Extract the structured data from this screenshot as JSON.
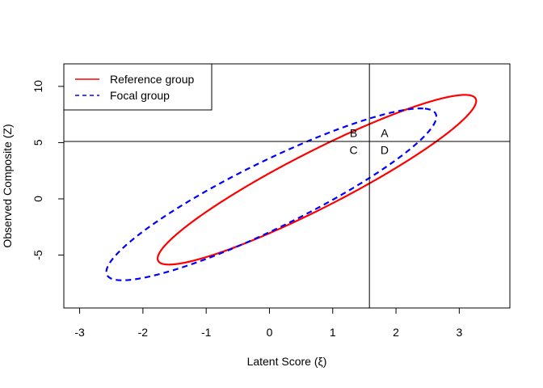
{
  "chart_data": {
    "type": "line",
    "title": "",
    "xlabel": "Latent Score (ξ)",
    "ylabel": "Observed Composite (Z)",
    "xlim": [
      -3.25,
      3.8
    ],
    "ylim": [
      -9.7,
      12.0
    ],
    "xticks": [
      "-3",
      "-2",
      "-1",
      "0",
      "1",
      "2",
      "3"
    ],
    "yticks": [
      "-5",
      "0",
      "5",
      "10"
    ],
    "grid": false,
    "legend_position": "top-left",
    "reference_lines": {
      "vertical_x": 1.58,
      "horizontal_y": 5.1,
      "color": "#000000"
    },
    "series": [
      {
        "name": "Reference group",
        "style": "solid",
        "color": "#ff0000",
        "ellipse": {
          "center": [
            0.75,
            1.7
          ],
          "axis_dirs": [
            [
              0.3,
              0.954
            ],
            [
              -0.954,
              0.3
            ]
          ],
          "semi_axes": [
            7.9,
            0.89
          ]
        }
      },
      {
        "name": "Focal group",
        "style": "dashed",
        "color": "#0000ff",
        "ellipse": {
          "center": [
            0.03,
            0.4
          ],
          "axis_dirs": [
            [
              0.3,
              0.954
            ],
            [
              -0.954,
              0.3
            ]
          ],
          "semi_axes": [
            8.0,
            1.07
          ]
        }
      }
    ],
    "annotations": [
      {
        "text": "A",
        "x": 1.82,
        "y": 5.85
      },
      {
        "text": "B",
        "x": 1.33,
        "y": 5.85
      },
      {
        "text": "C",
        "x": 1.33,
        "y": 4.35
      },
      {
        "text": "D",
        "x": 1.82,
        "y": 4.35
      }
    ]
  }
}
